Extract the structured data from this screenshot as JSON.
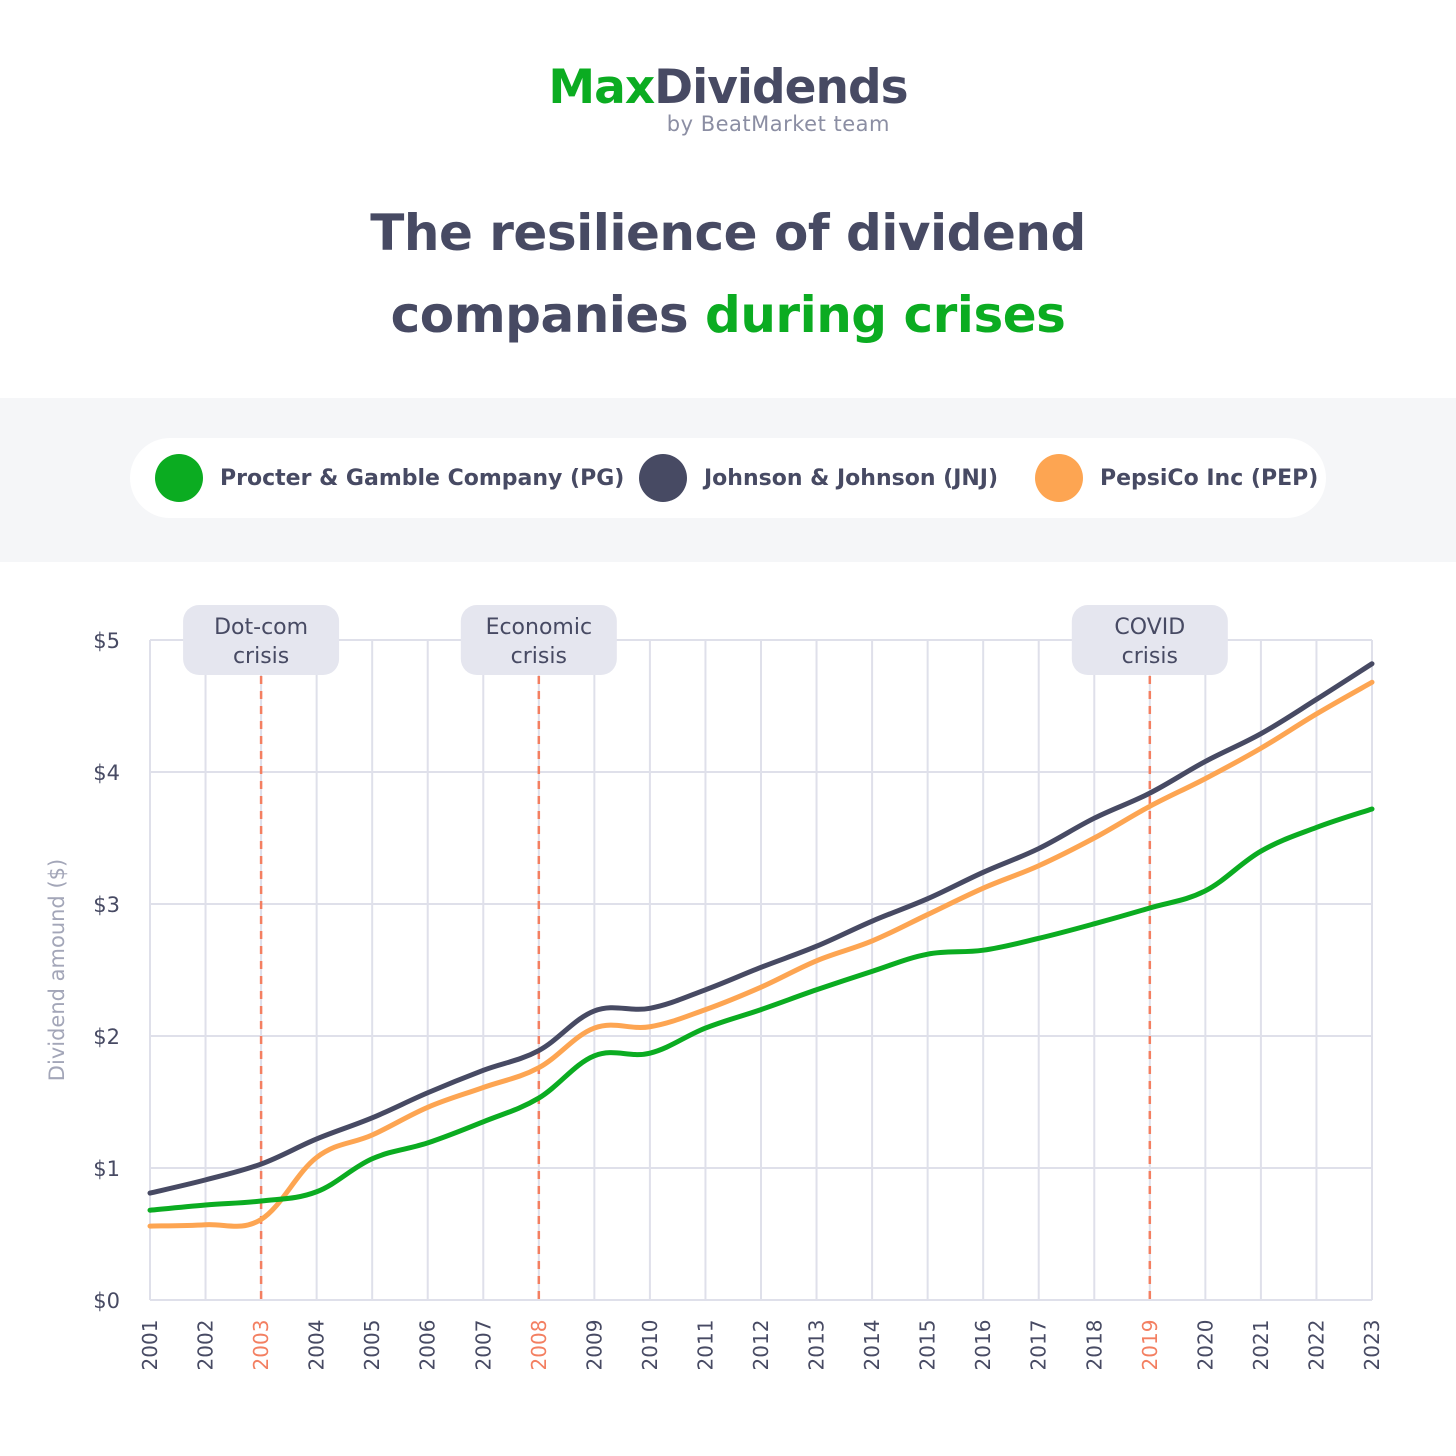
{
  "brand": {
    "name_accent": "Max",
    "name_main": "Dividends",
    "subtitle": "by BeatMarket team"
  },
  "headline": {
    "line1": "The resilience of dividend",
    "line2_main": "companies ",
    "line2_accent": "during crises"
  },
  "colors": {
    "accent": "#0bac21",
    "dark": "#474a63",
    "orange": "#fda552",
    "crisis": "#f37f61",
    "grid": "#dfe0ea",
    "label_bg": "#e5e6ef"
  },
  "chart_data": {
    "type": "line",
    "title": "The resilience of dividend companies during crises",
    "ylabel": "Dividend amound ($)",
    "xlabel": "",
    "x": [
      2001,
      2002,
      2003,
      2004,
      2005,
      2006,
      2007,
      2008,
      2009,
      2010,
      2011,
      2012,
      2013,
      2014,
      2015,
      2016,
      2017,
      2018,
      2019,
      2020,
      2021,
      2022,
      2023
    ],
    "ylim": [
      0,
      5
    ],
    "yticks": [
      0,
      1,
      2,
      3,
      4,
      5
    ],
    "ytick_labels": [
      "$0",
      "$1",
      "$2",
      "$3",
      "$4",
      "$5"
    ],
    "grid": true,
    "legend_position": "top",
    "series": [
      {
        "name": "Procter & Gamble Company (PG)",
        "color": "#0bac21",
        "values": [
          0.68,
          0.72,
          0.75,
          0.82,
          1.07,
          1.19,
          1.35,
          1.53,
          1.85,
          1.87,
          2.06,
          2.2,
          2.35,
          2.49,
          2.62,
          2.65,
          2.74,
          2.85,
          2.97,
          3.1,
          3.4,
          3.58,
          3.72
        ]
      },
      {
        "name": "Johnson & Johnson (JNJ)",
        "color": "#474a63",
        "values": [
          0.81,
          0.91,
          1.03,
          1.22,
          1.38,
          1.57,
          1.74,
          1.89,
          2.19,
          2.21,
          2.35,
          2.52,
          2.68,
          2.87,
          3.04,
          3.24,
          3.42,
          3.65,
          3.84,
          4.08,
          4.29,
          4.55,
          4.82
        ]
      },
      {
        "name": "PepsiCo Inc (PEP)",
        "color": "#fda552",
        "values": [
          0.56,
          0.57,
          0.61,
          1.08,
          1.25,
          1.46,
          1.61,
          1.76,
          2.06,
          2.07,
          2.2,
          2.37,
          2.57,
          2.72,
          2.92,
          3.12,
          3.29,
          3.5,
          3.74,
          3.95,
          4.18,
          4.44,
          4.68
        ]
      }
    ],
    "annotations": [
      {
        "year": 2003,
        "line1": "Dot-com",
        "line2": "crisis"
      },
      {
        "year": 2008,
        "line1": "Economic",
        "line2": "crisis"
      },
      {
        "year": 2019,
        "line1": "COVID",
        "line2": "crisis"
      }
    ]
  }
}
